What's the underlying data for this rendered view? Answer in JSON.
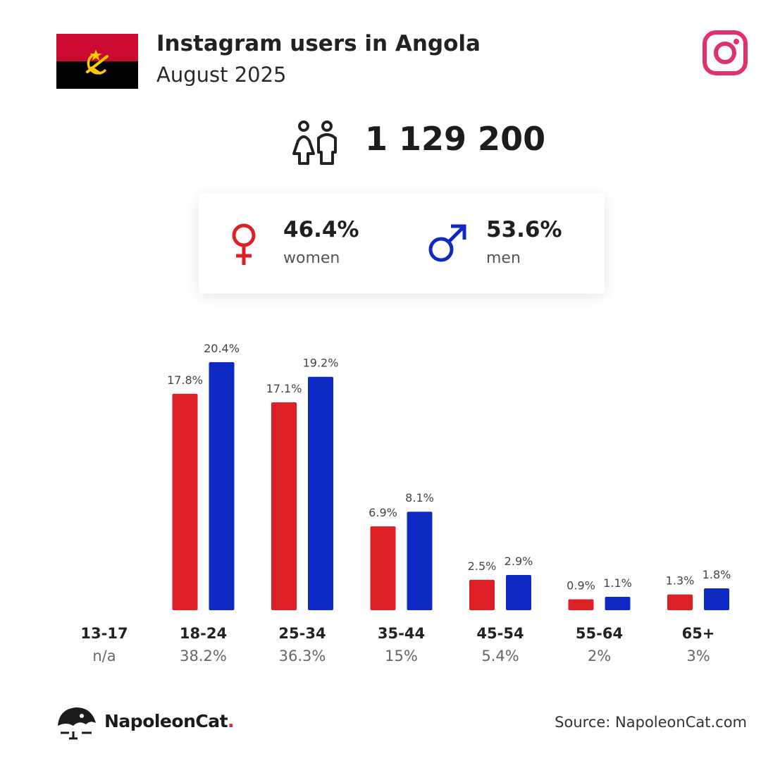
{
  "header": {
    "title": "Instagram users in Angola",
    "subtitle": "August 2025"
  },
  "icons": {
    "flag": "angola-flag-icon",
    "platform": "instagram-icon",
    "audience": "people-icon",
    "female": "female-symbol-icon",
    "male": "male-symbol-icon",
    "brand_logo": "napoleoncat-logo-icon"
  },
  "summary": {
    "total_users": "1 129 200",
    "women_pct": "46.4%",
    "women_label": "women",
    "men_pct": "53.6%",
    "men_label": "men"
  },
  "colors": {
    "women": "#dd1f26",
    "men": "#0f2ac3",
    "instagram": "#e1306c",
    "flag_red": "#cc092f",
    "flag_black": "#000000",
    "flag_emblem": "#ffcb00"
  },
  "chart_data": {
    "type": "bar",
    "categories": [
      "13-17",
      "18-24",
      "25-34",
      "35-44",
      "45-54",
      "55-64",
      "65+"
    ],
    "category_totals": [
      "n/a",
      "38.2%",
      "36.3%",
      "15%",
      "5.4%",
      "2%",
      "3%"
    ],
    "series": [
      {
        "name": "women",
        "values": [
          null,
          17.8,
          17.1,
          6.9,
          2.5,
          0.9,
          1.3
        ],
        "labels": [
          "",
          "17.8%",
          "17.1%",
          "6.9%",
          "2.5%",
          "0.9%",
          "1.3%"
        ]
      },
      {
        "name": "men",
        "values": [
          null,
          20.4,
          19.2,
          8.1,
          2.9,
          1.1,
          1.8
        ],
        "labels": [
          "",
          "20.4%",
          "19.2%",
          "8.1%",
          "2.9%",
          "1.1%",
          "1.8%"
        ]
      }
    ],
    "ylim": [
      0,
      20.4
    ],
    "grid": false,
    "legend": "none"
  },
  "footer": {
    "brand_name": "NapoleonCat",
    "brand_dot": ".",
    "source": "Source: NapoleonCat.com"
  }
}
